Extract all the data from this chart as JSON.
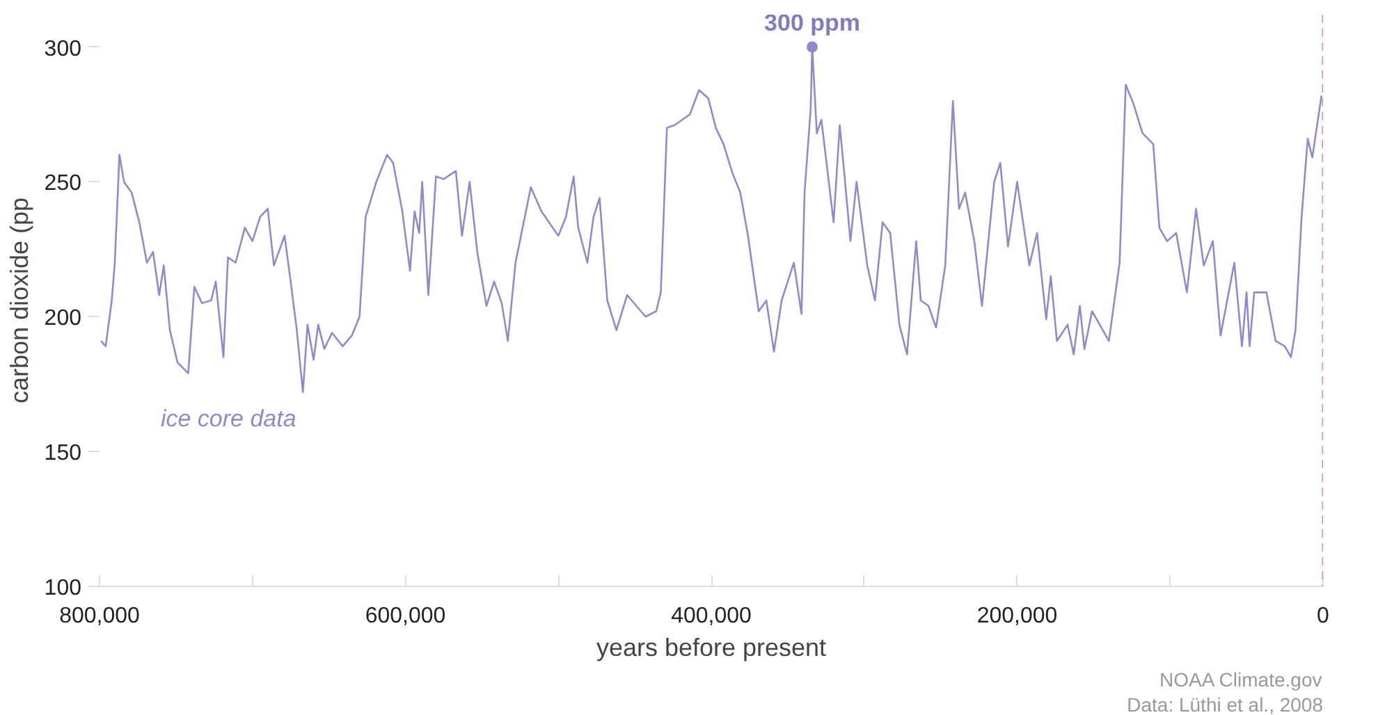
{
  "chart_data": {
    "type": "line",
    "xlabel": "years before present",
    "ylabel": "carbon dioxide (pp",
    "x": [
      799000,
      796000,
      792000,
      790000,
      787000,
      784000,
      779000,
      774000,
      769000,
      765000,
      761000,
      758000,
      754000,
      749000,
      742000,
      738000,
      733000,
      727000,
      724000,
      719000,
      716000,
      711000,
      705000,
      700000,
      695000,
      690000,
      686000,
      679000,
      675000,
      671000,
      667000,
      664000,
      660000,
      657000,
      653000,
      648000,
      641000,
      635000,
      630000,
      626000,
      619000,
      612000,
      608000,
      602000,
      597000,
      594000,
      591000,
      589000,
      585000,
      580000,
      575000,
      567000,
      563000,
      558000,
      553000,
      547000,
      542000,
      537000,
      533000,
      528000,
      518000,
      511000,
      500000,
      495000,
      490000,
      487000,
      481000,
      477000,
      473000,
      468000,
      462000,
      455000,
      449000,
      443000,
      436000,
      433000,
      429000,
      424000,
      414000,
      408000,
      402000,
      397000,
      392000,
      386000,
      381000,
      376000,
      369000,
      364000,
      359000,
      354000,
      346000,
      341000,
      339000,
      335000,
      334000,
      331000,
      328000,
      320000,
      316000,
      313000,
      309000,
      305000,
      298000,
      293000,
      288000,
      283000,
      277000,
      272000,
      266000,
      263000,
      258000,
      253000,
      247000,
      242000,
      238000,
      234000,
      228000,
      223000,
      215000,
      211000,
      206000,
      200000,
      192000,
      187000,
      181000,
      178000,
      174000,
      167000,
      163000,
      159000,
      156000,
      151000,
      146000,
      140000,
      133000,
      129000,
      124000,
      118000,
      111000,
      107000,
      102000,
      96000,
      89000,
      83000,
      78000,
      72000,
      67000,
      58000,
      53000,
      50000,
      48000,
      45000,
      37000,
      31000,
      25000,
      21000,
      18000,
      14000,
      10000,
      7000,
      1000
    ],
    "series": [
      {
        "name": "ice core data",
        "color": "#8e8bcc",
        "values": [
          191,
          189,
          206,
          220,
          260,
          250,
          246,
          235,
          220,
          224,
          208,
          219,
          195,
          183,
          179,
          211,
          205,
          206,
          213,
          185,
          222,
          220,
          233,
          228,
          237,
          240,
          219,
          230,
          213,
          195,
          172,
          197,
          184,
          197,
          188,
          194,
          189,
          193,
          200,
          237,
          250,
          260,
          257,
          239,
          217,
          239,
          231,
          250,
          208,
          252,
          251,
          254,
          230,
          250,
          224,
          204,
          213,
          205,
          191,
          220,
          248,
          239,
          230,
          237,
          252,
          233,
          220,
          237,
          244,
          206,
          195,
          208,
          204,
          200,
          202,
          209,
          270,
          271,
          275,
          284,
          281,
          270,
          264,
          253,
          246,
          230,
          202,
          206,
          187,
          206,
          220,
          201,
          246,
          277,
          300,
          268,
          273,
          235,
          271,
          253,
          228,
          250,
          219,
          206,
          235,
          231,
          197,
          186,
          228,
          206,
          204,
          196,
          219,
          280,
          240,
          246,
          228,
          204,
          250,
          257,
          226,
          250,
          219,
          231,
          199,
          215,
          191,
          197,
          186,
          204,
          188,
          202,
          197,
          191,
          220,
          286,
          279,
          268,
          264,
          233,
          228,
          231,
          209,
          240,
          219,
          228,
          193,
          220,
          189,
          209,
          189,
          209,
          209,
          191,
          189,
          185,
          195,
          237,
          266,
          259,
          282
        ]
      }
    ],
    "xlim": [
      800000,
      0
    ],
    "ylim": [
      100,
      312
    ],
    "xticks": [
      {
        "value": 800000,
        "label": "800,000"
      },
      {
        "value": 700000,
        "label": null
      },
      {
        "value": 600000,
        "label": "600,000"
      },
      {
        "value": 500000,
        "label": null
      },
      {
        "value": 400000,
        "label": "400,000"
      },
      {
        "value": 300000,
        "label": null
      },
      {
        "value": 200000,
        "label": "200,000"
      },
      {
        "value": 100000,
        "label": null
      },
      0
    ],
    "yticks": [
      100,
      150,
      200,
      250,
      300
    ],
    "ref_lines": [
      {
        "axis": "x",
        "value": 0,
        "color": "#e87fcf",
        "line_style": "dashed"
      }
    ],
    "annotations": [
      {
        "text": "300 ppm",
        "x": 334000,
        "y": 300
      },
      "NOAA Climate.gov",
      "Data: Lüthi et al., 2008"
    ],
    "grid": false
  }
}
